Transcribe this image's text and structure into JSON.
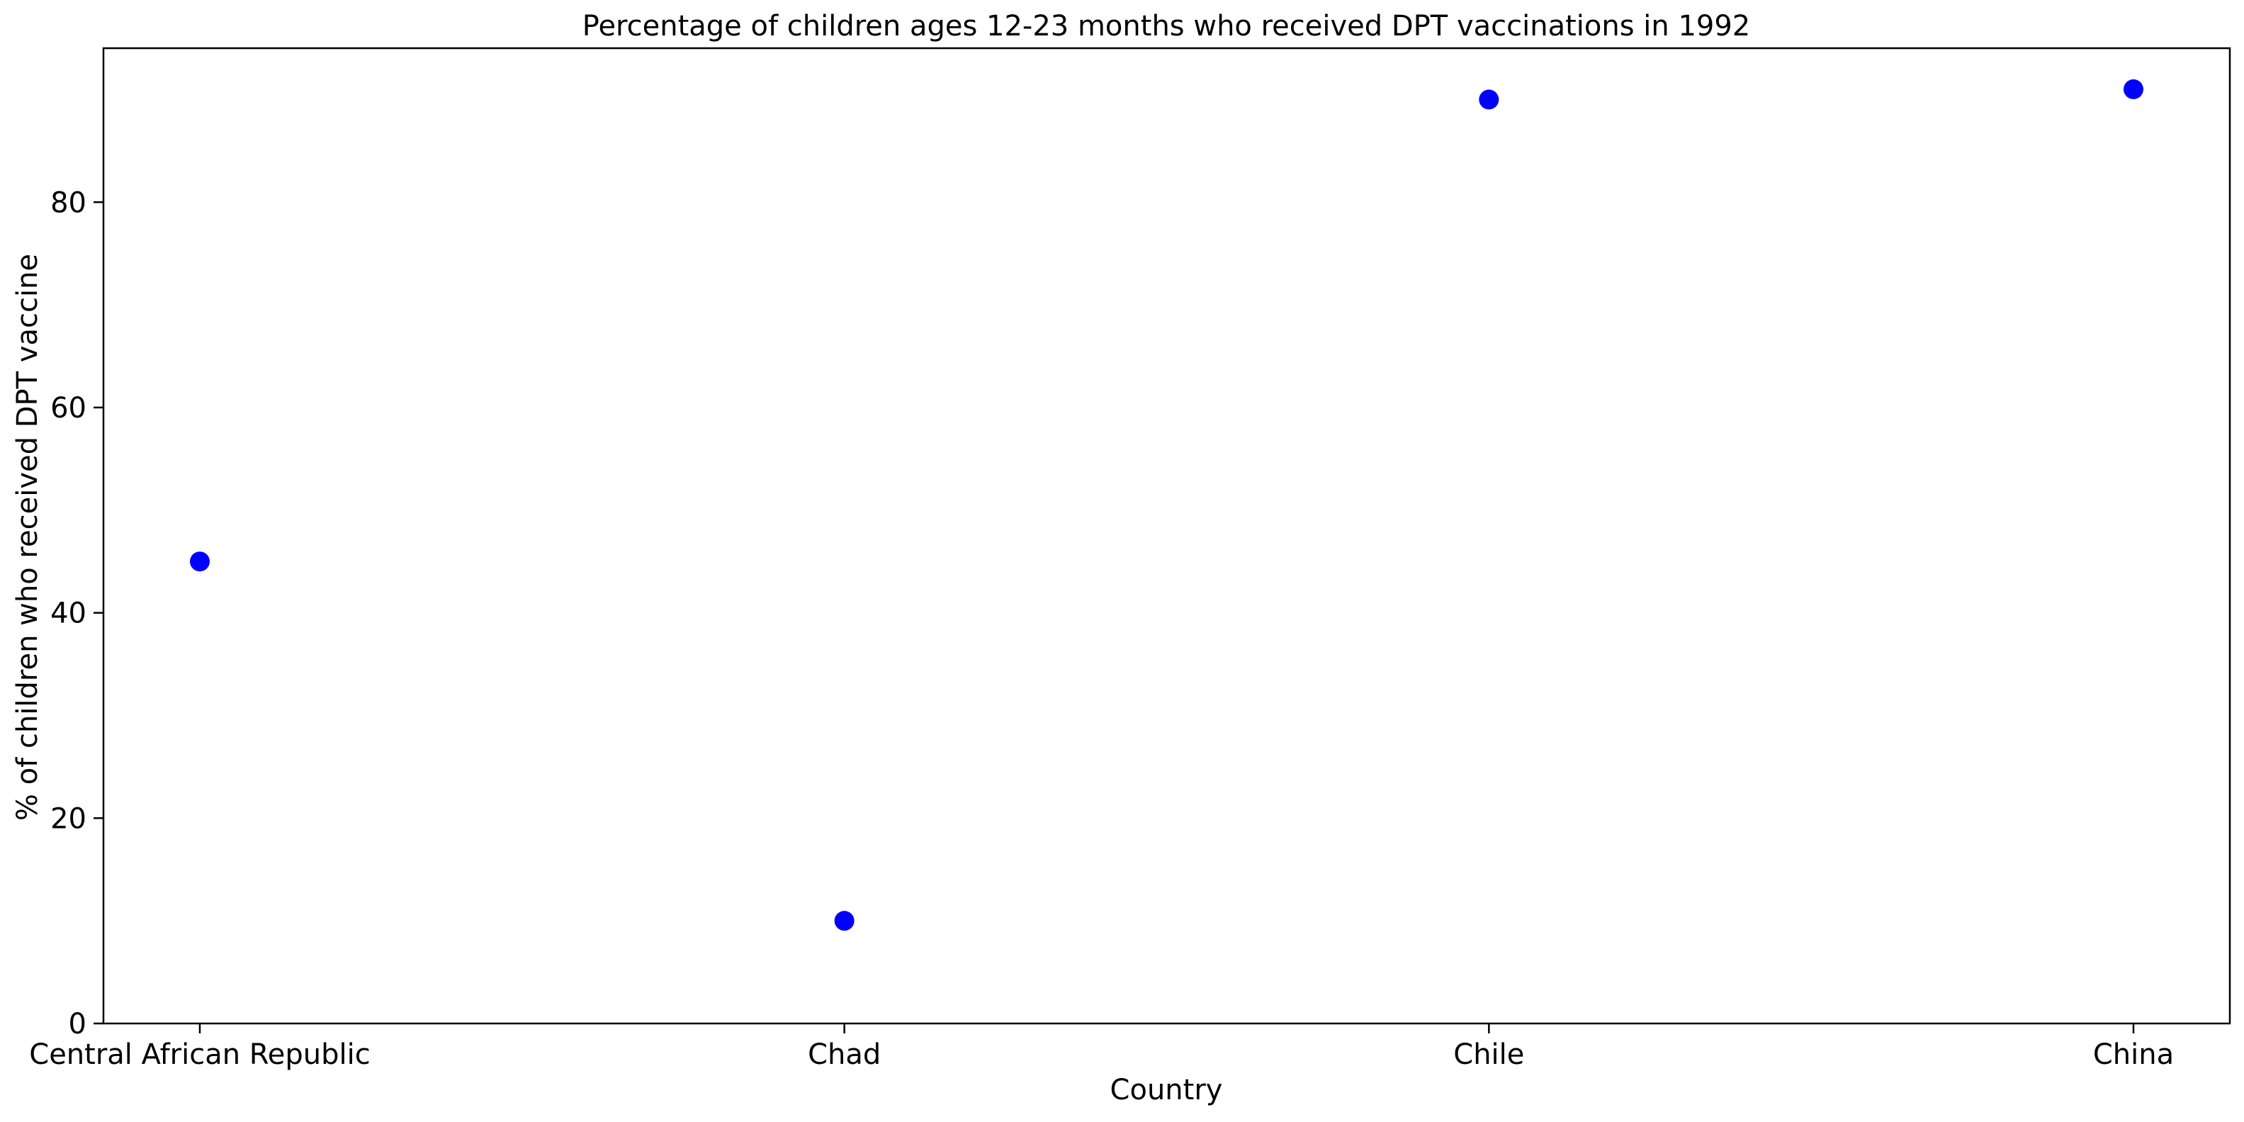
{
  "chart_data": {
    "type": "scatter",
    "title": "Percentage of children ages 12-23 months who received DPT vaccinations in 1992",
    "xlabel": "Country",
    "ylabel": "% of children who received DPT vaccine",
    "categories": [
      "Central African Republic",
      "Chad",
      "Chile",
      "China"
    ],
    "series": [
      {
        "values": [
          45,
          10,
          90,
          91
        ]
      }
    ],
    "ylim": [
      0,
      95
    ],
    "yticks": [
      0,
      20,
      40,
      60,
      80
    ],
    "grid": false,
    "marker_color": "#0000ff"
  }
}
